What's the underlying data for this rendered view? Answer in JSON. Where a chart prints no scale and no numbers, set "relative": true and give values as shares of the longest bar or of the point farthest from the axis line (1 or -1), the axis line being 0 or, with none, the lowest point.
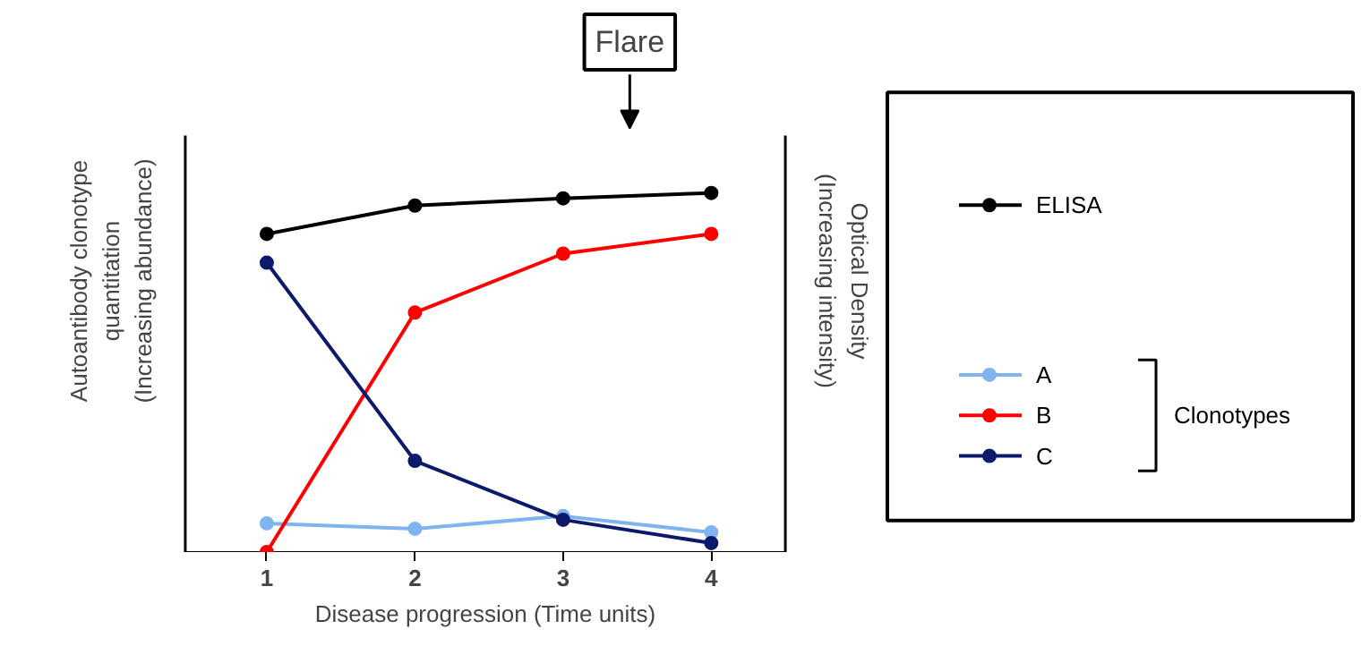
{
  "chart_data": {
    "type": "line",
    "relative": true,
    "xlabel": "Disease progression (Time units)",
    "ylabel": "Autoantibody clonotype\nquantitation\n(Increasing abundance)",
    "y2label": "Optical Density\n(Increasing intensity)",
    "x": [
      1,
      2,
      3,
      4
    ],
    "xlim": [
      0.45,
      4.5
    ],
    "xticks": [
      1,
      2,
      3,
      4
    ],
    "marker": "circle",
    "legend": "right",
    "grid": false,
    "series": [
      {
        "name": "ELISA",
        "color": "#000000",
        "values": [
          0.886,
          0.965,
          0.985,
          1
        ]
      },
      {
        "name": "A",
        "color": "#80b4ee",
        "values": [
          0.08,
          0.065,
          0.1,
          0.055
        ]
      },
      {
        "name": "B",
        "color": "#ff0000",
        "values": [
          0,
          0.667,
          0.831,
          0.886
        ]
      },
      {
        "name": "C",
        "color": "#0d1a6b",
        "values": [
          0.806,
          0.254,
          0.09,
          0.025
        ]
      }
    ],
    "annotations": [
      "Flare",
      "Clonotypes"
    ]
  }
}
